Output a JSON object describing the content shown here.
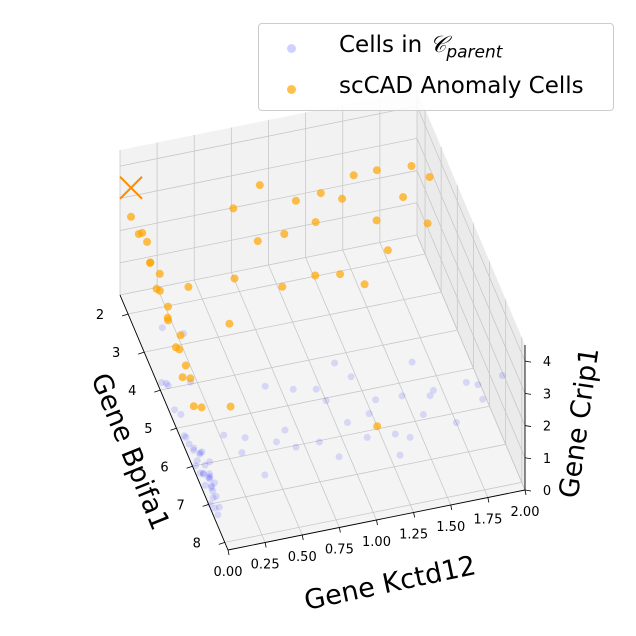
{
  "chart_data": {
    "type": "scatter3d",
    "title": "",
    "xlabel": "Gene Kctd12",
    "ylabel": "Gene Bpifa1",
    "zlabel": "Gene Crip1",
    "x_ticks": [
      "0.00",
      "0.25",
      "0.50",
      "0.75",
      "1.00",
      "1.25",
      "1.50",
      "1.75",
      "2.00"
    ],
    "y_ticks": [
      "2",
      "3",
      "4",
      "5",
      "6",
      "7",
      "8"
    ],
    "z_ticks": [
      "0",
      "1",
      "2",
      "3",
      "4"
    ],
    "xlim": [
      0,
      2.0
    ],
    "ylim": [
      1.5,
      8.2
    ],
    "zlim": [
      0,
      4.5
    ],
    "legend_position": "top-right",
    "series": [
      {
        "name": "Cells in C_parent",
        "legend_prefix": "Cells in ",
        "legend_symbol": "𝒞",
        "legend_subscript": "parent",
        "color": "#0000ff",
        "alpha": 0.12,
        "points": [
          [
            0.02,
            6.6,
            0.1
          ],
          [
            0.04,
            6.8,
            0.3
          ],
          [
            0.01,
            7.0,
            0.0
          ],
          [
            0.03,
            6.4,
            0.2
          ],
          [
            0.05,
            6.9,
            0.5
          ],
          [
            0.02,
            7.2,
            0.1
          ],
          [
            0.06,
            6.7,
            0.0
          ],
          [
            0.01,
            6.2,
            0.4
          ],
          [
            0.03,
            6.5,
            0.6
          ],
          [
            0.02,
            7.1,
            0.3
          ],
          [
            0.04,
            6.3,
            0.1
          ],
          [
            0.05,
            7.0,
            0.2
          ],
          [
            0.02,
            6.0,
            0.0
          ],
          [
            0.03,
            5.8,
            0.3
          ],
          [
            0.01,
            6.9,
            0.7
          ],
          [
            0.02,
            5.6,
            0.2
          ],
          [
            0.04,
            6.1,
            0.5
          ],
          [
            0.03,
            7.3,
            0.0
          ],
          [
            0.05,
            6.6,
            0.8
          ],
          [
            0.02,
            5.3,
            0.1
          ],
          [
            0.03,
            5.0,
            0.4
          ],
          [
            0.02,
            4.7,
            0.2
          ],
          [
            0.01,
            4.4,
            0.6
          ],
          [
            0.03,
            4.1,
            0.3
          ],
          [
            0.02,
            3.9,
            0.1
          ],
          [
            0.06,
            5.9,
            0.2
          ],
          [
            0.04,
            6.7,
            0.4
          ],
          [
            0.02,
            6.4,
            0.9
          ],
          [
            0.05,
            7.2,
            0.1
          ],
          [
            0.03,
            6.8,
            0.6
          ],
          [
            0.01,
            5.5,
            0.3
          ],
          [
            0.03,
            6.2,
            0.0
          ],
          [
            0.02,
            7.0,
            0.5
          ],
          [
            0.04,
            5.7,
            0.1
          ],
          [
            0.06,
            6.5,
            0.3
          ],
          [
            0.5,
            6.6,
            1.0
          ],
          [
            0.6,
            6.2,
            0.8
          ],
          [
            0.8,
            6.5,
            0.6
          ],
          [
            0.9,
            6.0,
            1.2
          ],
          [
            1.0,
            6.4,
            0.9
          ],
          [
            1.1,
            6.7,
            0.7
          ],
          [
            1.2,
            6.3,
            1.3
          ],
          [
            1.3,
            6.6,
            0.5
          ],
          [
            1.4,
            6.1,
            1.0
          ],
          [
            1.5,
            6.5,
            0.8
          ],
          [
            1.6,
            6.2,
            1.1
          ],
          [
            1.7,
            6.7,
            0.6
          ],
          [
            1.8,
            6.4,
            1.4
          ],
          [
            0.7,
            5.8,
            1.5
          ],
          [
            1.0,
            5.6,
            1.8
          ],
          [
            1.2,
            5.9,
            0.4
          ],
          [
            0.4,
            6.8,
            0.3
          ],
          [
            0.3,
            6.5,
            1.2
          ],
          [
            0.2,
            6.1,
            0.9
          ],
          [
            1.5,
            5.8,
            1.6
          ],
          [
            1.9,
            6.5,
            0.9
          ],
          [
            0.9,
            6.8,
            0.4
          ],
          [
            0.6,
            6.9,
            1.1
          ],
          [
            1.3,
            6.9,
            0.2
          ],
          [
            0.5,
            5.9,
            1.9
          ],
          [
            1.1,
            5.7,
            1.4
          ],
          [
            0.8,
            6.3,
            2.0
          ],
          [
            1.4,
            6.6,
            0.3
          ],
          [
            0.3,
            6.3,
            0.5
          ],
          [
            1.6,
            6.0,
            0.7
          ],
          [
            2.0,
            6.8,
            1.9
          ],
          [
            1.9,
            6.2,
            1.0
          ],
          [
            0.15,
            4.5,
            0.7
          ],
          [
            0.1,
            3.2,
            0.9
          ],
          [
            0.2,
            3.6,
            1.1
          ]
        ]
      },
      {
        "name": "scCAD Anomaly Cells",
        "color": "#ffa500",
        "alpha": 0.7,
        "points": [
          [
            0.02,
            2.0,
            3.0
          ],
          [
            0.04,
            2.3,
            2.8
          ],
          [
            0.03,
            2.6,
            3.2
          ],
          [
            0.05,
            2.9,
            2.6
          ],
          [
            0.02,
            3.2,
            3.0
          ],
          [
            0.04,
            3.4,
            2.4
          ],
          [
            0.03,
            3.7,
            2.7
          ],
          [
            0.05,
            4.0,
            2.2
          ],
          [
            0.02,
            4.3,
            2.5
          ],
          [
            0.04,
            4.6,
            2.0
          ],
          [
            0.03,
            4.9,
            2.3
          ],
          [
            0.02,
            5.2,
            1.8
          ],
          [
            0.04,
            5.5,
            2.1
          ],
          [
            0.03,
            5.8,
            1.6
          ],
          [
            0.05,
            6.1,
            1.9
          ],
          [
            0.02,
            3.0,
            3.4
          ],
          [
            0.04,
            3.6,
            3.1
          ],
          [
            0.03,
            4.2,
            2.8
          ],
          [
            0.05,
            4.8,
            2.6
          ],
          [
            0.02,
            5.4,
            2.4
          ],
          [
            0.6,
            3.0,
            3.9
          ],
          [
            0.8,
            2.8,
            4.2
          ],
          [
            1.0,
            3.2,
            4.0
          ],
          [
            1.2,
            2.9,
            3.7
          ],
          [
            1.4,
            3.1,
            4.3
          ],
          [
            1.6,
            2.7,
            3.8
          ],
          [
            1.8,
            3.0,
            4.1
          ],
          [
            0.7,
            3.6,
            3.5
          ],
          [
            0.9,
            3.4,
            3.3
          ],
          [
            1.1,
            3.5,
            3.6
          ],
          [
            1.3,
            3.3,
            3.9
          ],
          [
            1.5,
            3.6,
            3.4
          ],
          [
            1.7,
            3.4,
            3.7
          ],
          [
            1.9,
            3.2,
            3.9
          ],
          [
            0.5,
            4.0,
            3.0
          ],
          [
            0.8,
            4.2,
            2.7
          ],
          [
            1.0,
            4.4,
            3.1
          ],
          [
            1.2,
            4.1,
            2.6
          ],
          [
            1.5,
            4.3,
            3.3
          ],
          [
            1.8,
            4.0,
            3.5
          ],
          [
            0.4,
            4.6,
            2.4
          ],
          [
            1.3,
            4.7,
            2.9
          ],
          [
            0.3,
            5.6,
            1.1
          ],
          [
            1.2,
            6.4,
            0.6
          ],
          [
            0.2,
            3.9,
            2.9
          ]
        ],
        "markers": [
          {
            "name": "cross",
            "point": [
              0.02,
              2.0,
              3.9
            ]
          }
        ]
      }
    ]
  }
}
